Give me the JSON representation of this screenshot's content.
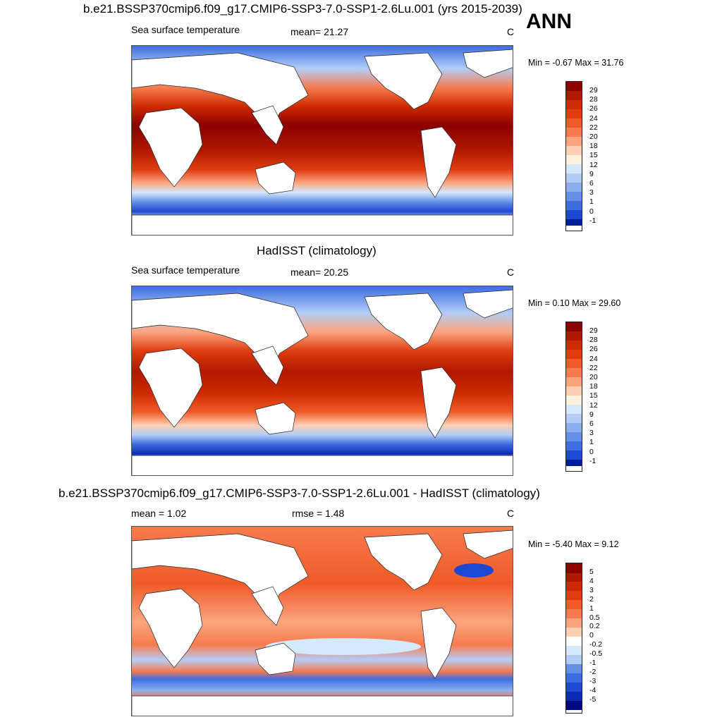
{
  "panels": [
    {
      "title": "b.e21.BSSP370cmip6.f09_g17.CMIP6-SSP3-7.0-SSP1-2.6Lu.001 (yrs 2015-2039)",
      "left_label": "Sea surface temperature",
      "center_label": "mean=  21.27",
      "unit": "C",
      "minmax": "Min =  -0.67 Max =  31.76"
    },
    {
      "title": "HadISST (climatology)",
      "left_label": "Sea surface temperature",
      "center_label": "mean=  20.25",
      "unit": "C",
      "minmax": "Min =   0.10 Max =  29.60"
    },
    {
      "title": "b.e21.BSSP370cmip6.f09_g17.CMIP6-SSP3-7.0-SSP1-2.6Lu.001 - HadISST (climatology)",
      "left_label": "mean =   1.02",
      "center_label": "rmse =   1.48",
      "unit": "C",
      "minmax": "Min =  -5.40 Max =   9.12"
    }
  ],
  "season": "ANN",
  "chart_data": [
    {
      "type": "heatmap",
      "variable": "Sea surface temperature",
      "mean": 21.27,
      "min": -0.67,
      "max": 31.76,
      "colorbar_levels": [
        "29",
        "28",
        "26",
        "24",
        "22",
        "20",
        "18",
        "15",
        "12",
        "9",
        "6",
        "3",
        "1",
        "0",
        "-1"
      ]
    },
    {
      "type": "heatmap",
      "variable": "Sea surface temperature",
      "mean": 20.25,
      "min": 0.1,
      "max": 29.6,
      "colorbar_levels": [
        "29",
        "28",
        "26",
        "24",
        "22",
        "20",
        "18",
        "15",
        "12",
        "9",
        "6",
        "3",
        "1",
        "0",
        "-1"
      ]
    },
    {
      "type": "heatmap",
      "mean": 1.02,
      "rmse": 1.48,
      "min": -5.4,
      "max": 9.12,
      "colorbar_levels": [
        "5",
        "4",
        "3",
        "2",
        "1",
        "0.5",
        "0.2",
        "0",
        "-0.2",
        "-0.5",
        "-1",
        "-2",
        "-3",
        "-4",
        "-5"
      ]
    }
  ],
  "colors": {
    "scale": [
      "#8b0000",
      "#b01800",
      "#cc2a00",
      "#e03c10",
      "#ef5a28",
      "#f77b4e",
      "#fba57f",
      "#fdd0b3",
      "#fff0e0",
      "#d6e8fb",
      "#b3cdf5",
      "#8cb0ee",
      "#6590e6",
      "#3d6de0",
      "#1c48d4",
      "#0c2cb8",
      "#001c96",
      "#000a80"
    ]
  }
}
